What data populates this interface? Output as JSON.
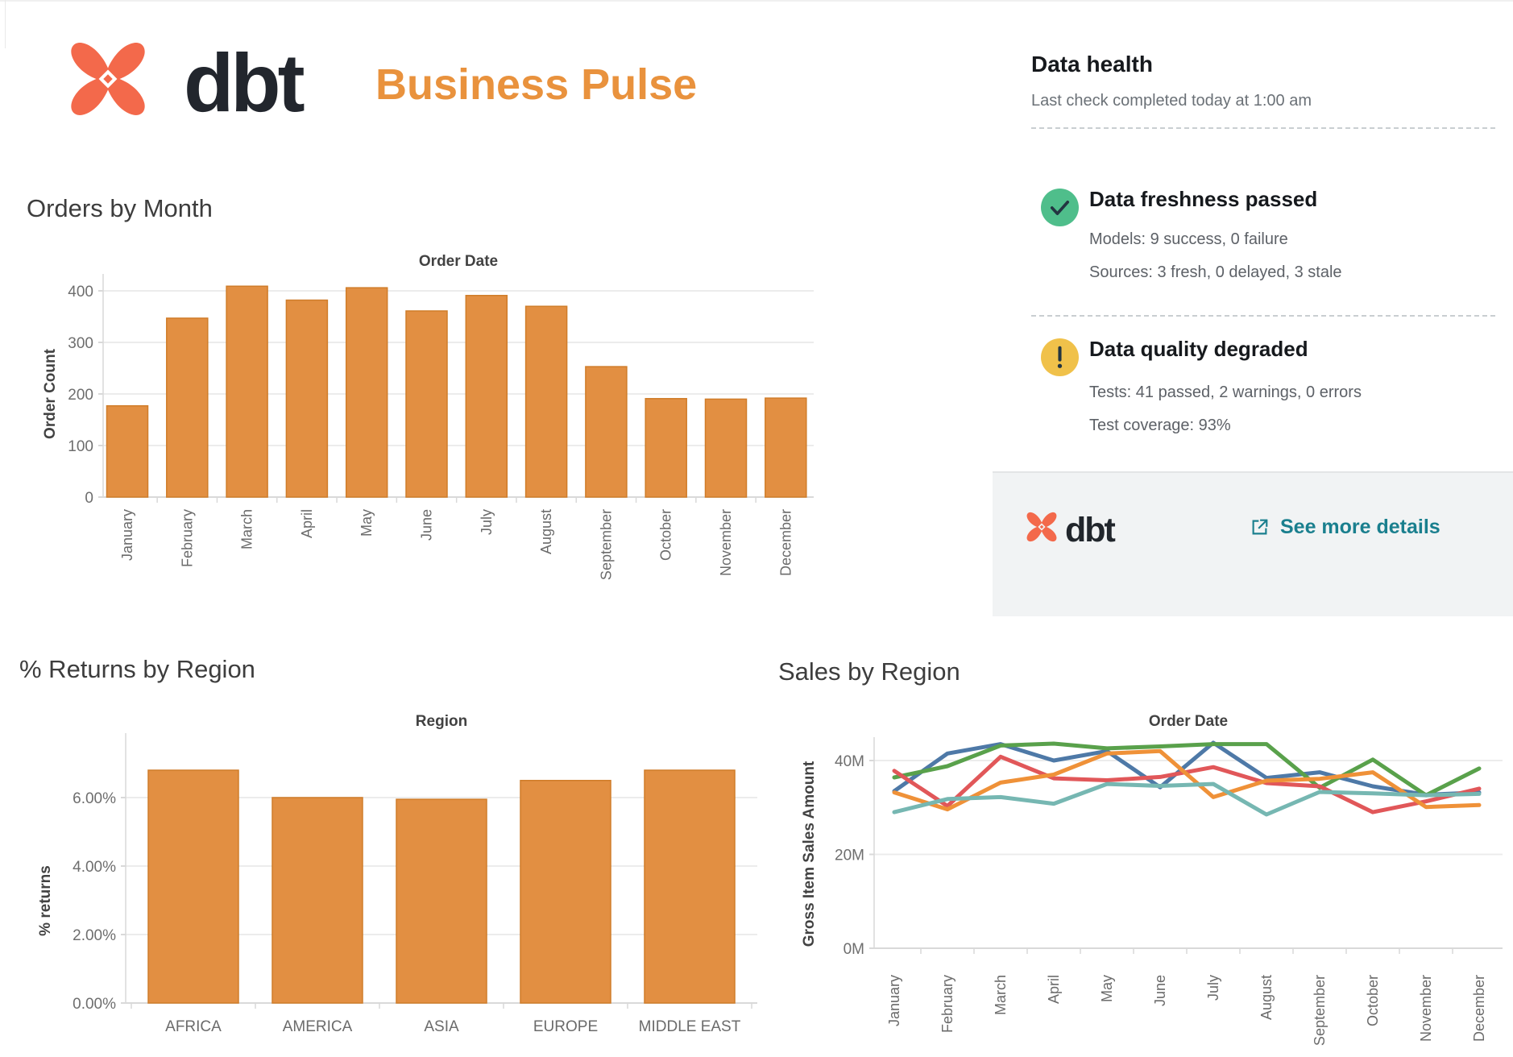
{
  "header": {
    "brand_wordmark": "dbt",
    "title": "Business Pulse"
  },
  "colors": {
    "brand_coral": "#f3694b",
    "brand_navy": "#22262d",
    "accent_orange": "#e9923d",
    "bar_orange": "#e28f42",
    "bar_border": "#d07d2a",
    "link_teal": "#1a7f8e",
    "success_green": "#4fbe8b",
    "warning_amber": "#f0c14a",
    "icon_stroke_dark": "#233541"
  },
  "data_health": {
    "title": "Data health",
    "last_check": "Last check completed today at 1:00 am",
    "freshness": {
      "icon": "check-circle-icon",
      "heading": "Data freshness passed",
      "models_line": "Models: 9 success, 0 failure",
      "sources_line": "Sources: 3 fresh, 0 delayed, 3 stale"
    },
    "quality": {
      "icon": "warning-circle-icon",
      "heading": "Data quality degraded",
      "tests_line": "Tests: 41 passed, 2 warnings, 0 errors",
      "coverage_line": "Test coverage: 93%"
    },
    "footer": {
      "brand_wordmark": "dbt",
      "link_label": "See more details"
    }
  },
  "chart_data": [
    {
      "id": "orders_by_month",
      "type": "bar",
      "title": "Orders by Month",
      "axis_title": "Order Date",
      "xlabel": "",
      "ylabel": "Order Count",
      "categories": [
        "January",
        "February",
        "March",
        "April",
        "May",
        "June",
        "July",
        "August",
        "September",
        "October",
        "November",
        "December"
      ],
      "values": [
        177,
        347,
        409,
        382,
        406,
        361,
        391,
        370,
        253,
        191,
        190,
        192
      ],
      "yticks": [
        0,
        100,
        200,
        300,
        400
      ],
      "ytick_labels": [
        "0",
        "100",
        "200",
        "300",
        "400"
      ],
      "ylim": [
        0,
        430
      ],
      "grid": true,
      "legend": "none"
    },
    {
      "id": "returns_by_region",
      "type": "bar",
      "title": "% Returns by Region",
      "axis_title": "Region",
      "xlabel": "",
      "ylabel": "% returns",
      "categories": [
        "AFRICA",
        "AMERICA",
        "ASIA",
        "EUROPE",
        "MIDDLE EAST"
      ],
      "values": [
        6.8,
        6.0,
        5.95,
        6.5,
        6.8
      ],
      "yticks": [
        0,
        2,
        4,
        6
      ],
      "ytick_labels": [
        "0.00%",
        "2.00%",
        "4.00%",
        "6.00%"
      ],
      "ylim": [
        0,
        7.9
      ],
      "grid": true,
      "legend": "none"
    },
    {
      "id": "sales_by_region",
      "type": "line",
      "title": "Sales by Region",
      "axis_title": "Order Date",
      "xlabel": "",
      "ylabel": "Gross Item Sales Amount",
      "x": [
        "January",
        "February",
        "March",
        "April",
        "May",
        "June",
        "July",
        "August",
        "September",
        "October",
        "November",
        "December"
      ],
      "series": [
        {
          "name": "blue",
          "color": "#4e79a7",
          "values": [
            33.5,
            41.5,
            43.5,
            40.0,
            42.0,
            34.3,
            43.8,
            36.3,
            37.5,
            34.5,
            32.7,
            33.2
          ]
        },
        {
          "name": "green",
          "color": "#59a14b",
          "values": [
            36.4,
            38.8,
            43.2,
            43.6,
            42.6,
            43.0,
            43.5,
            43.5,
            34.2,
            40.2,
            32.6,
            38.3
          ]
        },
        {
          "name": "red",
          "color": "#e15759",
          "values": [
            37.8,
            30.3,
            40.8,
            36.2,
            35.8,
            36.5,
            38.6,
            35.2,
            34.5,
            29.0,
            31.3,
            34.0
          ]
        },
        {
          "name": "orange",
          "color": "#ef9138",
          "values": [
            33.2,
            29.6,
            35.3,
            37.0,
            41.5,
            42.0,
            32.2,
            35.7,
            36.1,
            37.5,
            30.1,
            30.5
          ]
        },
        {
          "name": "teal",
          "color": "#76b7b2",
          "values": [
            29.0,
            31.8,
            32.2,
            30.8,
            35.0,
            34.6,
            35.0,
            28.5,
            33.3,
            33.0,
            32.6,
            32.9
          ]
        }
      ],
      "yticks": [
        0,
        20,
        40
      ],
      "ytick_labels": [
        "0M",
        "20M",
        "40M"
      ],
      "ylim": [
        0,
        47
      ],
      "grid": true,
      "legend": "none"
    }
  ]
}
